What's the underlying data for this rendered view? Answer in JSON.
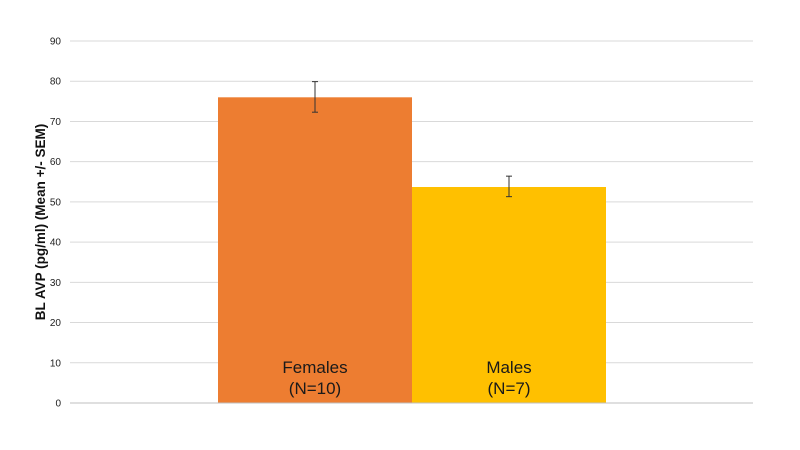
{
  "chart_data": {
    "type": "bar",
    "title": "",
    "xlabel": "",
    "ylabel": "BL AVP (pg/ml) (Mean +/- SEM)",
    "ylim": [
      0,
      90
    ],
    "yticks": [
      0,
      10,
      20,
      30,
      40,
      50,
      60,
      70,
      80,
      90
    ],
    "grid": true,
    "legend": "none",
    "categories": [
      "Females",
      "Males"
    ],
    "category_labels": [
      [
        "Females",
        "(N=10)"
      ],
      [
        "Males",
        "(N=7)"
      ]
    ],
    "values": [
      76,
      53.7
    ],
    "error_low": [
      72.3,
      51.3
    ],
    "error_high": [
      79.9,
      56.4
    ],
    "colors": [
      "#ed7d31",
      "#ffc000"
    ]
  }
}
